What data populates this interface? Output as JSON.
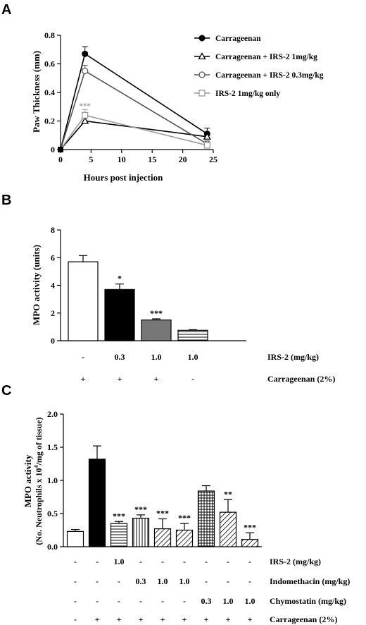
{
  "colors": {
    "black": "#000000",
    "dark_gray": "#555555",
    "light_gray": "#9a9a9a",
    "bar_gray": "#777777"
  },
  "panels": [
    {
      "letter": "A",
      "chart_data": {
        "type": "line",
        "x": [
          0,
          4,
          24
        ],
        "xlabel": "Hours post injection",
        "ylabel": "Paw Thickness (mm)",
        "xlim": [
          0,
          25
        ],
        "ylim": [
          0,
          0.8
        ],
        "xticks": [
          "0",
          "5",
          "10",
          "15",
          "20",
          "25"
        ],
        "yticks": [
          "0",
          "0.2",
          "0.4",
          "0.6",
          "0.8"
        ],
        "legend": "top-right",
        "grid": false,
        "series": [
          {
            "name": "Carrageenan",
            "marker": "filled-circle",
            "color": "#000000",
            "values": [
              0,
              0.67,
              0.11
            ],
            "errors": [
              0,
              0.05,
              0.04
            ]
          },
          {
            "name": "Carrageenan + IRS-2 1mg/kg",
            "marker": "open-triangle",
            "color": "#000000",
            "values": [
              0,
              0.2,
              0.09
            ],
            "errors": [
              0,
              0.04,
              0.03
            ]
          },
          {
            "name": "Carrageenan + IRS-2 0.3mg/kg",
            "marker": "open-circle",
            "color": "#555555",
            "values": [
              0,
              0.55,
              0.04
            ],
            "errors": [
              0,
              0.04,
              0.02
            ]
          },
          {
            "name": "IRS-2 1mg/kg  only",
            "marker": "open-square",
            "color": "#9a9a9a",
            "values": [
              0,
              0.24,
              0.03
            ],
            "errors": [
              0,
              0.04,
              0.02
            ]
          }
        ],
        "annotations": [
          {
            "text": "***",
            "x": 4,
            "y": 0.29
          }
        ]
      }
    },
    {
      "letter": "B",
      "chart_data": {
        "type": "bar",
        "ylabel": "MPO activity (units)",
        "ylim": [
          0,
          8
        ],
        "yticks": [
          "0",
          "2",
          "4",
          "6",
          "8"
        ],
        "values": [
          5.7,
          3.7,
          1.5,
          0.75
        ],
        "errors": [
          0.45,
          0.4,
          0.08,
          0.05
        ],
        "fills": [
          "white",
          "black",
          "gray",
          "hlines"
        ],
        "significance": [
          "",
          "*",
          "***",
          ""
        ],
        "treatments": [
          {
            "label": "IRS-2 (mg/kg)",
            "cells": [
              "-",
              "0.3",
              "1.0",
              "1.0"
            ]
          },
          {
            "label": "Carrageenan (2%)",
            "cells": [
              "+",
              "+",
              "+",
              "-"
            ]
          }
        ]
      }
    },
    {
      "letter": "C",
      "chart_data": {
        "type": "bar",
        "ylabel_line1": "MPO activity",
        "ylabel_line2": "(No. Neutrophils x 10",
        "ylabel_sup": "4",
        "ylabel_line2_end": "/mg of tissue)",
        "ylim": [
          0,
          2.0
        ],
        "yticks": [
          "0.0",
          "0.5",
          "1.0",
          "1.5",
          "2.0"
        ],
        "values": [
          0.23,
          1.32,
          0.35,
          0.43,
          0.27,
          0.25,
          0.84,
          0.52,
          0.11
        ],
        "errors": [
          0.03,
          0.2,
          0.03,
          0.05,
          0.15,
          0.1,
          0.08,
          0.19,
          0.1
        ],
        "fills": [
          "white",
          "black",
          "hlines",
          "vlines",
          "diag",
          "diag",
          "grid",
          "diag",
          "diag"
        ],
        "significance": [
          "",
          "",
          "***",
          "***",
          "***",
          "***",
          "",
          "**",
          "***"
        ],
        "treatments": [
          {
            "label": "IRS-2 (mg/kg)",
            "cells": [
              "-",
              "-",
              "1.0",
              "-",
              "-",
              "-",
              "-",
              "-",
              "-"
            ]
          },
          {
            "label": "Indomethacin (mg/kg)",
            "cells": [
              "-",
              "-",
              "-",
              "0.3",
              "1.0",
              "1.0",
              "-",
              "-",
              "-"
            ]
          },
          {
            "label": "Chymostatin (mg/kg)",
            "cells": [
              "-",
              "-",
              "-",
              "-",
              "-",
              "-",
              "0.3",
              "1.0",
              "1.0"
            ]
          },
          {
            "label": "Carrageenan (2%)",
            "cells": [
              "-",
              "+",
              "+",
              "+",
              "+",
              "+",
              "+",
              "+",
              "+"
            ]
          }
        ]
      }
    }
  ]
}
